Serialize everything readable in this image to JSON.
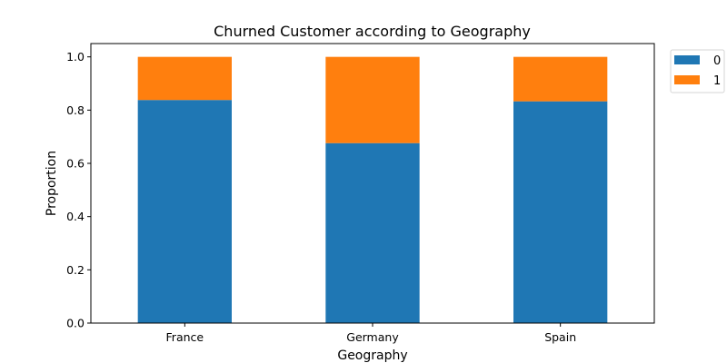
{
  "chart_data": {
    "type": "bar",
    "stacked": true,
    "title": "Churned Customer according to Geography",
    "xlabel": "Geography",
    "ylabel": "Proportion",
    "categories": [
      "France",
      "Germany",
      "Spain"
    ],
    "series": [
      {
        "name": "0",
        "values": [
          0.838,
          0.676,
          0.833
        ],
        "color": "#1f77b4"
      },
      {
        "name": "1",
        "values": [
          0.162,
          0.324,
          0.167
        ],
        "color": "#ff7f0e"
      }
    ],
    "ylim": [
      0,
      1.05
    ],
    "yticks": [
      "0.0",
      "0.2",
      "0.4",
      "0.6",
      "0.8",
      "1.0"
    ],
    "legend_position": "outside-top-right",
    "grid": false
  }
}
